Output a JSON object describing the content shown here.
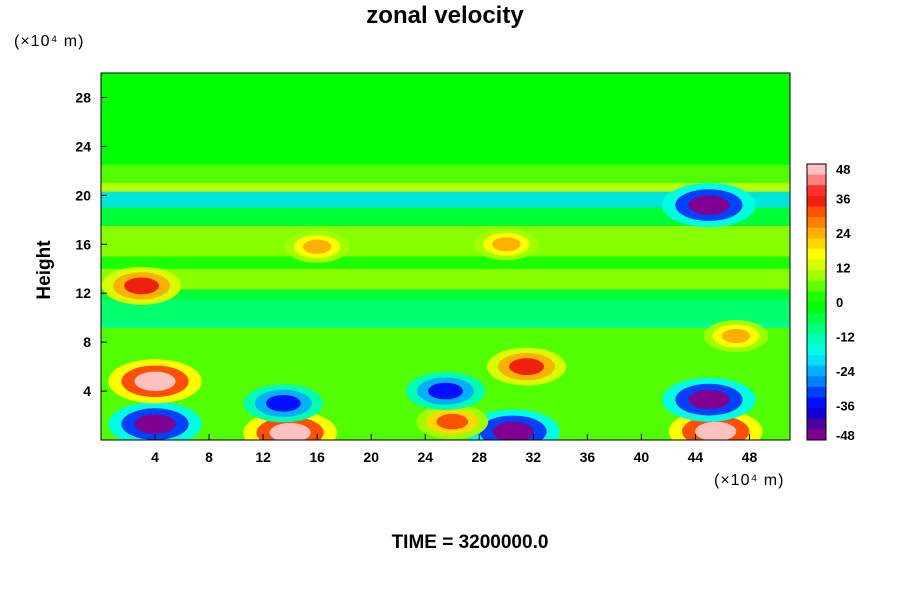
{
  "chart_data": {
    "type": "heatmap",
    "title": "zonal velocity",
    "ylabel": "Height",
    "x_unit": "(×10⁴ m)",
    "y_unit": "(×10⁴ m)",
    "footer": "TIME = 3200000.0",
    "xlim": [
      0,
      51
    ],
    "ylim": [
      0,
      30
    ],
    "x_ticks": [
      4,
      8,
      12,
      16,
      20,
      24,
      28,
      32,
      36,
      40,
      44,
      48
    ],
    "y_ticks": [
      4,
      8,
      12,
      16,
      20,
      24,
      28
    ],
    "colorbar": {
      "range": [
        -48,
        48
      ],
      "tick_values": [
        48,
        36,
        24,
        12,
        0,
        -12,
        -24,
        -36,
        -48
      ],
      "tick_labels": [
        "48",
        "36",
        "24",
        "12",
        "0",
        "-12",
        "-24",
        "-36",
        "-48"
      ],
      "colors": [
        "#ffc0c0",
        "#ff8080",
        "#ff3030",
        "#f02010",
        "#ff5000",
        "#ff8000",
        "#ffb000",
        "#ffd800",
        "#ffff00",
        "#d8ff00",
        "#a0ff00",
        "#60ff00",
        "#20ff00",
        "#00ff00",
        "#00ff40",
        "#00ff80",
        "#00ffb0",
        "#00ffe0",
        "#00e0ff",
        "#00b0ff",
        "#0080ff",
        "#0040ff",
        "#0010ff",
        "#1000d0",
        "#5000a0",
        "#800090"
      ]
    },
    "features": [
      {
        "x": 4,
        "y": 1.3,
        "value": -48
      },
      {
        "x": 4,
        "y": 4.8,
        "value": 48
      },
      {
        "x": 14,
        "y": 0.6,
        "value": 48
      },
      {
        "x": 13.5,
        "y": 3,
        "value": -36
      },
      {
        "x": 31.5,
        "y": 6,
        "value": 36
      },
      {
        "x": 30.5,
        "y": 0.7,
        "value": -48
      },
      {
        "x": 45.5,
        "y": 0.7,
        "value": 48
      },
      {
        "x": 45,
        "y": 3.3,
        "value": -48
      },
      {
        "x": 45,
        "y": 19.2,
        "value": -48
      },
      {
        "x": 26,
        "y": 1.5,
        "value": 30
      },
      {
        "x": 25.5,
        "y": 4,
        "value": -36
      },
      {
        "x": 16,
        "y": 15.8,
        "value": 24
      },
      {
        "x": 30,
        "y": 16,
        "value": 24
      },
      {
        "x": 3,
        "y": 12.6,
        "value": 36
      },
      {
        "x": 47,
        "y": 8.5,
        "value": 24
      }
    ]
  }
}
